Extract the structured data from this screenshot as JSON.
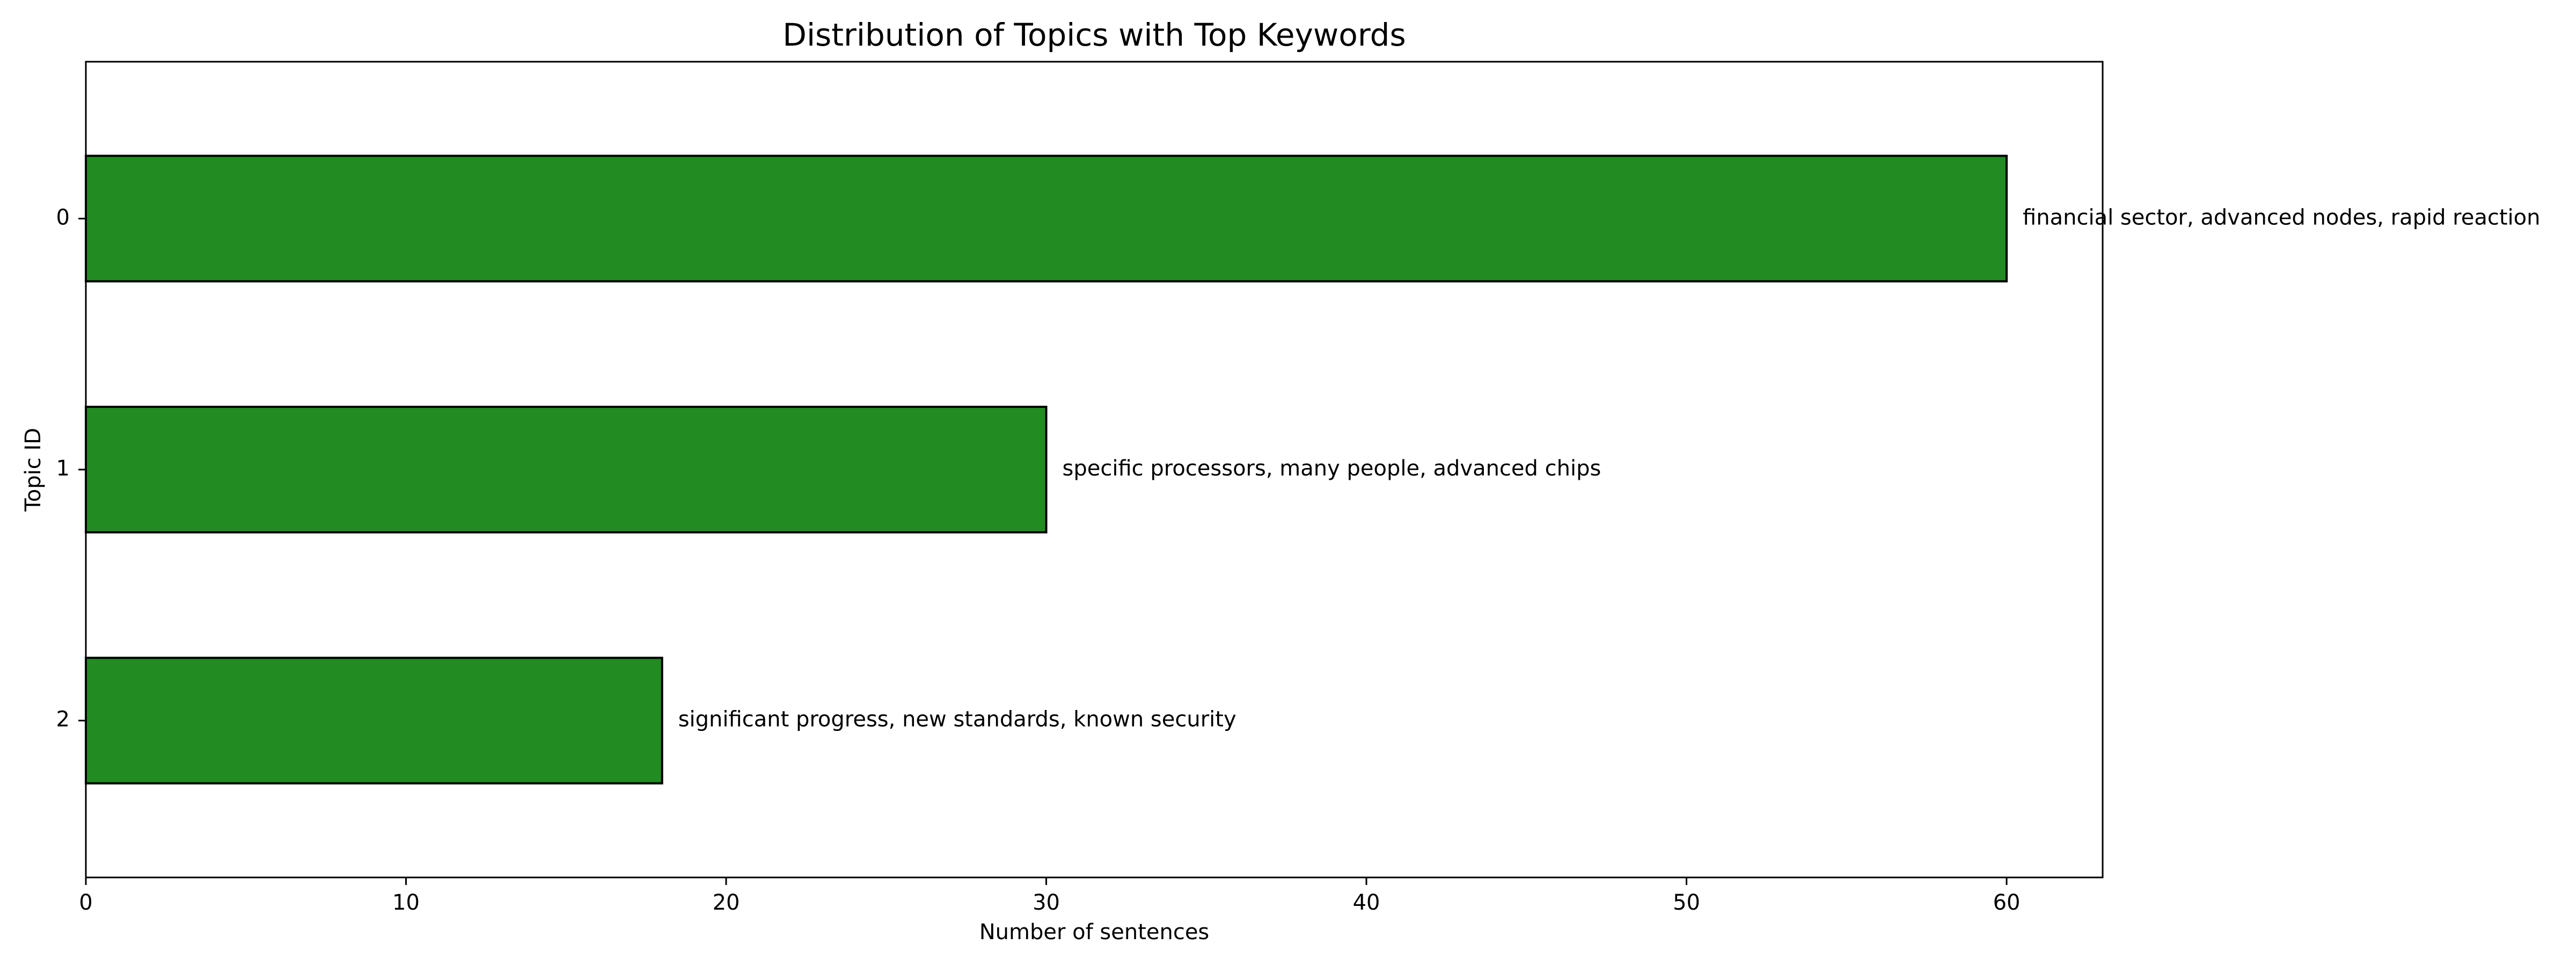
{
  "chart_data": {
    "type": "bar",
    "orientation": "horizontal",
    "title": "Distribution of Topics with Top Keywords",
    "xlabel": "Number of sentences",
    "ylabel": "Topic ID",
    "categories": [
      "0",
      "1",
      "2"
    ],
    "values": [
      60,
      30,
      18
    ],
    "bar_labels": [
      "financial sector, advanced nodes, rapid reaction",
      "specific processors, many people, advanced chips",
      "significant progress, new standards, known security"
    ],
    "xlim": [
      0,
      63
    ],
    "x_ticks": [
      0,
      10,
      20,
      30,
      40,
      50,
      60
    ],
    "grid": false,
    "legend": "none",
    "bar_color": "#228b22",
    "bar_edge_color": "#000000"
  }
}
